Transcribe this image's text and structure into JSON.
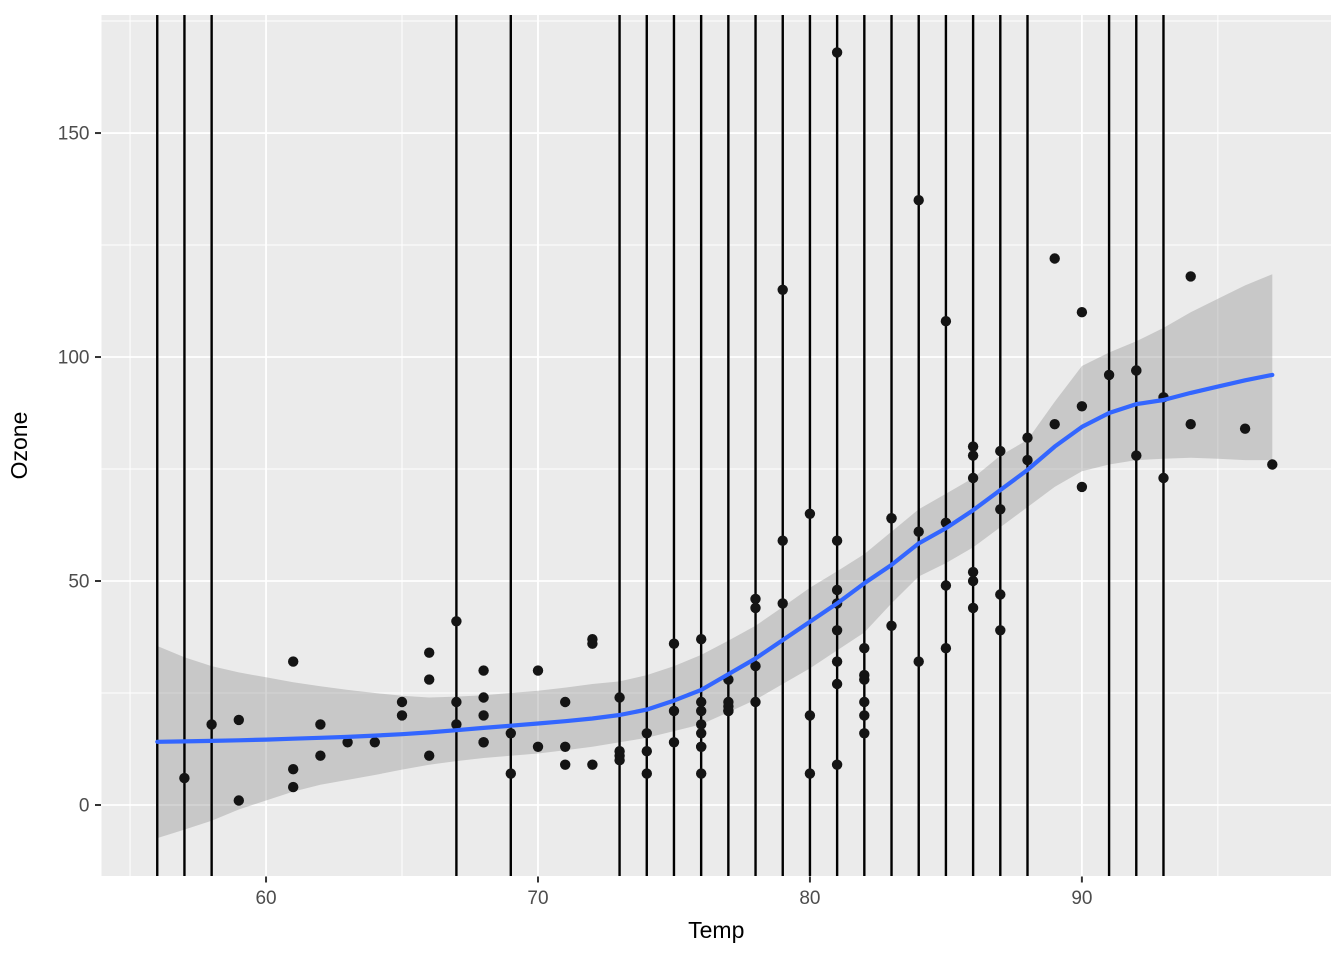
{
  "chart_data": {
    "type": "scatter",
    "title": "",
    "xlabel": "Temp",
    "ylabel": "Ozone",
    "x_ticks": [
      60,
      70,
      80,
      90
    ],
    "x_minor_ticks": [
      55,
      65,
      75,
      85,
      95
    ],
    "y_ticks": [
      0,
      50,
      100,
      150
    ],
    "y_minor_ticks": [
      25,
      75,
      125,
      175
    ],
    "xlim": [
      53.95,
      99.16
    ],
    "ylim": [
      -15.85,
      176.35
    ],
    "grid": true,
    "legend": "none",
    "points": [
      [
        67,
        41
      ],
      [
        72,
        36
      ],
      [
        74,
        12
      ],
      [
        62,
        18
      ],
      [
        66,
        28
      ],
      [
        65,
        23
      ],
      [
        59,
        19
      ],
      [
        61,
        8
      ],
      [
        74,
        7
      ],
      [
        69,
        16
      ],
      [
        66,
        11
      ],
      [
        68,
        14
      ],
      [
        58,
        18
      ],
      [
        64,
        14
      ],
      [
        66,
        34
      ],
      [
        57,
        6
      ],
      [
        68,
        30
      ],
      [
        62,
        11
      ],
      [
        59,
        1
      ],
      [
        73,
        11
      ],
      [
        61,
        4
      ],
      [
        61,
        32
      ],
      [
        67,
        23
      ],
      [
        81,
        45
      ],
      [
        79,
        115
      ],
      [
        76,
        37
      ],
      [
        82,
        29
      ],
      [
        90,
        71
      ],
      [
        87,
        39
      ],
      [
        82,
        23
      ],
      [
        77,
        21
      ],
      [
        72,
        37
      ],
      [
        65,
        20
      ],
      [
        73,
        12
      ],
      [
        76,
        13
      ],
      [
        84,
        135
      ],
      [
        85,
        49
      ],
      [
        81,
        32
      ],
      [
        83,
        64
      ],
      [
        83,
        40
      ],
      [
        88,
        77
      ],
      [
        92,
        97
      ],
      [
        92,
        97
      ],
      [
        89,
        85
      ],
      [
        73,
        10
      ],
      [
        81,
        27
      ],
      [
        80,
        7
      ],
      [
        81,
        48
      ],
      [
        82,
        35
      ],
      [
        84,
        61
      ],
      [
        87,
        79
      ],
      [
        85,
        63
      ],
      [
        74,
        16
      ],
      [
        86,
        80
      ],
      [
        85,
        108
      ],
      [
        82,
        20
      ],
      [
        86,
        52
      ],
      [
        88,
        82
      ],
      [
        86,
        50
      ],
      [
        83,
        64
      ],
      [
        81,
        59
      ],
      [
        81,
        39
      ],
      [
        81,
        9
      ],
      [
        82,
        16
      ],
      [
        86,
        78
      ],
      [
        85,
        35
      ],
      [
        87,
        66
      ],
      [
        89,
        122
      ],
      [
        90,
        89
      ],
      [
        90,
        110
      ],
      [
        86,
        44
      ],
      [
        82,
        28
      ],
      [
        80,
        65
      ],
      [
        77,
        22
      ],
      [
        79,
        59
      ],
      [
        76,
        23
      ],
      [
        78,
        31
      ],
      [
        78,
        44
      ],
      [
        77,
        21
      ],
      [
        72,
        9
      ],
      [
        79,
        45
      ],
      [
        81,
        168
      ],
      [
        86,
        73
      ],
      [
        97,
        76
      ],
      [
        94,
        118
      ],
      [
        96,
        84
      ],
      [
        94,
        85
      ],
      [
        91,
        96
      ],
      [
        92,
        78
      ],
      [
        93,
        73
      ],
      [
        93,
        91
      ],
      [
        87,
        47
      ],
      [
        84,
        32
      ],
      [
        80,
        20
      ],
      [
        78,
        23
      ],
      [
        75,
        21
      ],
      [
        73,
        24
      ],
      [
        76,
        21
      ],
      [
        77,
        28
      ],
      [
        71,
        9
      ],
      [
        71,
        13
      ],
      [
        78,
        46
      ],
      [
        67,
        18
      ],
      [
        68,
        24
      ],
      [
        70,
        13
      ],
      [
        70,
        30
      ],
      [
        76,
        13
      ],
      [
        68,
        14
      ],
      [
        76,
        16
      ],
      [
        77,
        23
      ],
      [
        75,
        36
      ],
      [
        76,
        7
      ],
      [
        68,
        20
      ],
      [
        75,
        14
      ],
      [
        76,
        18
      ],
      [
        63,
        14
      ],
      [
        69,
        7
      ],
      [
        71,
        23
      ]
    ],
    "vlines": [
      56,
      57,
      58,
      67,
      69,
      73,
      74,
      75,
      76,
      77,
      78,
      79,
      80,
      81,
      82,
      83,
      84,
      85,
      86,
      87,
      88,
      91,
      92,
      93
    ],
    "smooth": [
      [
        56,
        14.1,
        -7.4,
        35.5
      ],
      [
        57,
        14.2,
        -5.5,
        33
      ],
      [
        58,
        14.3,
        -3.5,
        31
      ],
      [
        59,
        14.45,
        -1,
        29.6
      ],
      [
        60,
        14.6,
        1,
        28.5
      ],
      [
        61,
        14.8,
        3,
        27.4
      ],
      [
        62,
        15,
        4.5,
        26.5
      ],
      [
        63,
        15.2,
        5.6,
        25.7
      ],
      [
        64,
        15.5,
        6.7,
        25
      ],
      [
        65,
        15.8,
        7.9,
        24.4
      ],
      [
        66,
        16.2,
        9,
        24
      ],
      [
        67,
        16.7,
        9.8,
        24.2
      ],
      [
        68,
        17.2,
        10.5,
        24.5
      ],
      [
        69,
        17.7,
        11,
        25
      ],
      [
        70,
        18.2,
        11.5,
        25.5
      ],
      [
        71,
        18.7,
        12.2,
        26.2
      ],
      [
        72,
        19.3,
        13,
        27
      ],
      [
        73,
        20.1,
        14,
        27.6
      ],
      [
        74,
        21.3,
        15,
        29
      ],
      [
        75,
        23.3,
        16.5,
        31
      ],
      [
        76,
        25.7,
        18,
        33.5
      ],
      [
        77,
        29.2,
        20.7,
        36.7
      ],
      [
        78,
        32.7,
        23.5,
        40
      ],
      [
        79,
        36.8,
        27,
        44.2
      ],
      [
        80,
        40.9,
        30.5,
        48.5
      ],
      [
        81,
        45,
        34.5,
        52.2
      ],
      [
        82,
        49.5,
        38.5,
        56
      ],
      [
        83,
        53.6,
        45,
        61
      ],
      [
        84,
        58.4,
        51,
        66
      ],
      [
        85,
        61.8,
        54,
        69.5
      ],
      [
        86,
        65.8,
        57.5,
        73
      ],
      [
        87,
        70.3,
        62,
        78
      ],
      [
        88,
        74.8,
        66.5,
        81.5
      ],
      [
        89,
        80,
        71,
        90
      ],
      [
        90,
        84.4,
        74.5,
        98
      ],
      [
        91,
        87.5,
        76,
        101
      ],
      [
        92,
        89.5,
        77,
        103.5
      ],
      [
        93,
        90.4,
        77.3,
        106.5
      ],
      [
        94,
        92,
        77.5,
        110
      ],
      [
        95,
        93.4,
        77.3,
        113
      ],
      [
        96,
        94.8,
        77,
        116
      ],
      [
        97,
        96,
        77,
        118.5
      ]
    ],
    "colors": {
      "panel_background": "#EBEBEB",
      "grid": "#FFFFFF",
      "point": "#141414",
      "vline": "#000000",
      "smooth_line": "#3366FF",
      "ribbon": "rgba(153,153,153,0.42)",
      "tick_label": "#4D4D4D",
      "tick_mark": "#333333",
      "axis_title": "#000000"
    }
  }
}
